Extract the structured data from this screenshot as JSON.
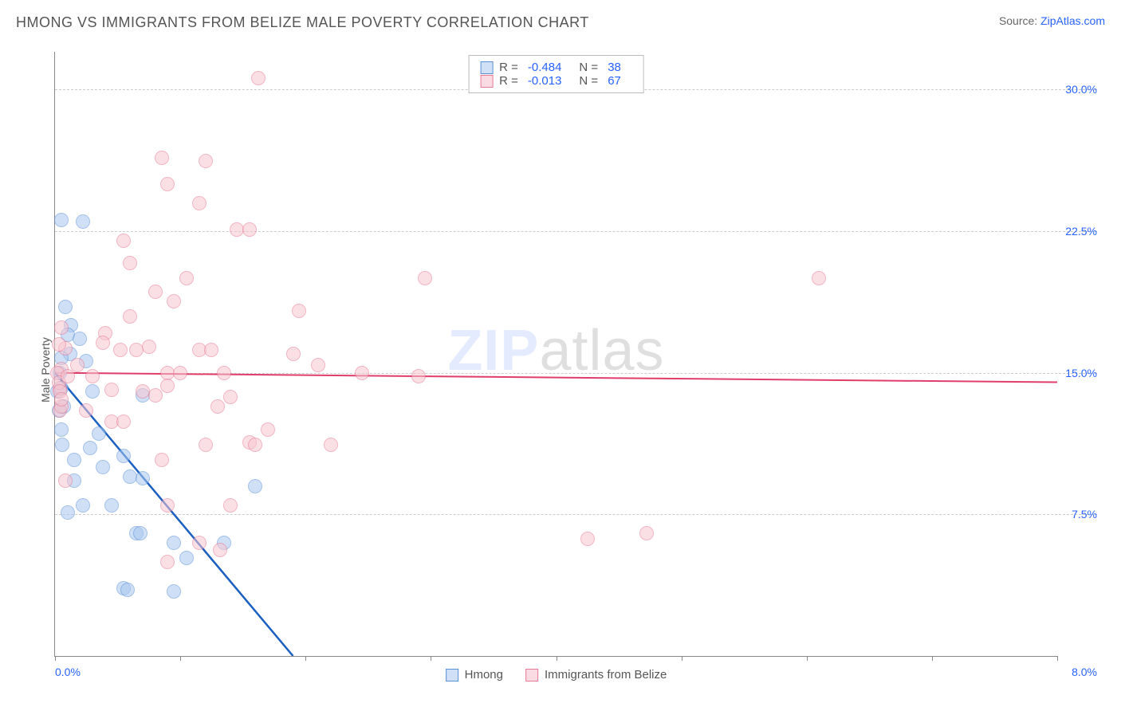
{
  "header": {
    "title": "HMONG VS IMMIGRANTS FROM BELIZE MALE POVERTY CORRELATION CHART",
    "source_label": "Source:",
    "source_link": "ZipAtlas.com"
  },
  "chart": {
    "type": "scatter",
    "ylabel": "Male Poverty",
    "xlim": [
      0.0,
      8.0
    ],
    "ylim": [
      0.0,
      32.0
    ],
    "xtick_positions": [
      0,
      1,
      2,
      3,
      4,
      5,
      6,
      7,
      8
    ],
    "xtick_labels": {
      "left": "0.0%",
      "right": "8.0%"
    },
    "ytick_positions": [
      7.5,
      15.0,
      22.5,
      30.0
    ],
    "ytick_labels": [
      "7.5%",
      "15.0%",
      "22.5%",
      "30.0%"
    ],
    "background_color": "#ffffff",
    "grid_color": "#cccccc",
    "axis_color": "#888888",
    "marker_radius": 9,
    "series": [
      {
        "name": "Hmong",
        "fill_color": "#a8c8f0",
        "stroke_color": "#5b8fd6",
        "legend_swatch_fill": "#cfe0f7",
        "R": "-0.484",
        "N": "38",
        "trend": {
          "x1": 0.0,
          "y1": 15.0,
          "x2": 1.9,
          "y2": 0.0,
          "color": "#1b5fc1",
          "width": 2.5
        },
        "trend_ext": {
          "x1": 1.9,
          "y1": 0.0,
          "x2": 2.15,
          "y2": -2.0,
          "color": "#bbbbbb",
          "dash": true
        },
        "points": [
          [
            0.02,
            14.0
          ],
          [
            0.05,
            14.2
          ],
          [
            0.03,
            13.0
          ],
          [
            0.07,
            13.2
          ],
          [
            0.05,
            12.0
          ],
          [
            0.05,
            23.1
          ],
          [
            0.22,
            23.0
          ],
          [
            0.08,
            18.5
          ],
          [
            0.13,
            17.5
          ],
          [
            0.1,
            17.0
          ],
          [
            0.2,
            16.8
          ],
          [
            0.12,
            16.0
          ],
          [
            0.05,
            15.8
          ],
          [
            0.25,
            15.6
          ],
          [
            0.04,
            15.0
          ],
          [
            0.3,
            14.0
          ],
          [
            0.7,
            13.8
          ],
          [
            0.06,
            11.2
          ],
          [
            0.35,
            11.8
          ],
          [
            0.28,
            11.0
          ],
          [
            0.15,
            10.4
          ],
          [
            0.55,
            10.6
          ],
          [
            0.38,
            10.0
          ],
          [
            0.15,
            9.3
          ],
          [
            0.6,
            9.5
          ],
          [
            0.7,
            9.4
          ],
          [
            1.6,
            9.0
          ],
          [
            0.22,
            8.0
          ],
          [
            0.45,
            8.0
          ],
          [
            0.1,
            7.6
          ],
          [
            0.65,
            6.5
          ],
          [
            0.68,
            6.5
          ],
          [
            0.95,
            6.0
          ],
          [
            1.35,
            6.0
          ],
          [
            1.05,
            5.2
          ],
          [
            0.95,
            3.4
          ],
          [
            0.55,
            3.6
          ],
          [
            0.58,
            3.5
          ]
        ]
      },
      {
        "name": "Immigrants from Belize",
        "fill_color": "#f7c6d0",
        "stroke_color": "#e77a94",
        "legend_swatch_fill": "#fadbe3",
        "R": "-0.013",
        "N": "67",
        "trend": {
          "x1": 0.0,
          "y1": 15.0,
          "x2": 8.0,
          "y2": 14.5,
          "color": "#e03d6a",
          "width": 2
        },
        "points": [
          [
            1.62,
            30.6
          ],
          [
            0.85,
            26.4
          ],
          [
            1.2,
            26.2
          ],
          [
            0.9,
            25.0
          ],
          [
            1.15,
            24.0
          ],
          [
            1.45,
            22.6
          ],
          [
            1.55,
            22.6
          ],
          [
            0.55,
            22.0
          ],
          [
            0.6,
            20.8
          ],
          [
            1.05,
            20.0
          ],
          [
            2.95,
            20.0
          ],
          [
            6.1,
            20.0
          ],
          [
            0.8,
            19.3
          ],
          [
            0.95,
            18.8
          ],
          [
            1.95,
            18.3
          ],
          [
            0.05,
            17.4
          ],
          [
            0.4,
            17.1
          ],
          [
            0.08,
            16.3
          ],
          [
            0.52,
            16.2
          ],
          [
            0.65,
            16.2
          ],
          [
            1.15,
            16.2
          ],
          [
            1.25,
            16.2
          ],
          [
            1.9,
            16.0
          ],
          [
            0.05,
            15.2
          ],
          [
            0.9,
            15.0
          ],
          [
            1.0,
            15.0
          ],
          [
            1.35,
            15.0
          ],
          [
            2.45,
            15.0
          ],
          [
            2.9,
            14.8
          ],
          [
            0.04,
            14.2
          ],
          [
            0.3,
            14.8
          ],
          [
            0.9,
            14.3
          ],
          [
            0.45,
            14.1
          ],
          [
            0.7,
            14.0
          ],
          [
            0.8,
            13.8
          ],
          [
            1.4,
            13.7
          ],
          [
            1.3,
            13.2
          ],
          [
            0.04,
            13.0
          ],
          [
            0.05,
            13.2
          ],
          [
            0.45,
            12.4
          ],
          [
            0.55,
            12.4
          ],
          [
            1.7,
            12.0
          ],
          [
            1.2,
            11.2
          ],
          [
            1.55,
            11.3
          ],
          [
            1.6,
            11.2
          ],
          [
            2.2,
            11.2
          ],
          [
            0.85,
            10.4
          ],
          [
            0.08,
            9.3
          ],
          [
            0.9,
            8.0
          ],
          [
            1.4,
            8.0
          ],
          [
            1.15,
            6.0
          ],
          [
            1.32,
            5.6
          ],
          [
            0.9,
            5.0
          ],
          [
            4.25,
            6.2
          ],
          [
            4.72,
            6.5
          ],
          [
            0.02,
            15.0
          ],
          [
            0.03,
            14.5
          ],
          [
            0.04,
            14.0
          ],
          [
            0.05,
            13.6
          ],
          [
            0.03,
            16.5
          ],
          [
            0.1,
            14.8
          ],
          [
            0.25,
            13.0
          ],
          [
            0.18,
            15.4
          ],
          [
            0.38,
            16.6
          ],
          [
            2.1,
            15.4
          ],
          [
            0.6,
            18.0
          ],
          [
            0.75,
            16.4
          ]
        ]
      }
    ],
    "legend_bottom": [
      {
        "label": "Hmong",
        "series": 0
      },
      {
        "label": "Immigrants from Belize",
        "series": 1
      }
    ],
    "watermark": {
      "part1": "ZIP",
      "part2": "atlas"
    }
  }
}
